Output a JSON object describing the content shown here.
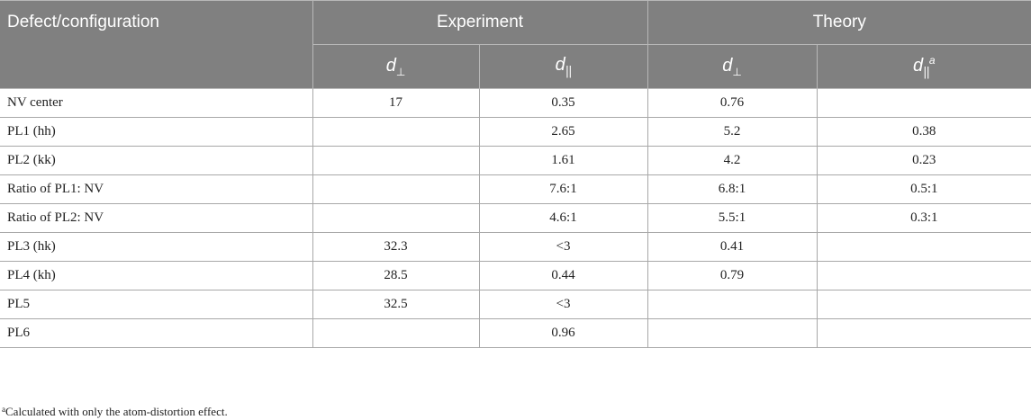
{
  "header": {
    "col0": "Defect/configuration",
    "group1": "Experiment",
    "group2": "Theory",
    "d_symbol": "d",
    "perp_sub": "⊥",
    "par_sub": "||",
    "footnote_mark": "a"
  },
  "rows": [
    {
      "name": "NV center",
      "exp_perp": "17",
      "exp_par": "0.35",
      "th_perp": "0.76",
      "th_par": ""
    },
    {
      "name": "PL1 (hh)",
      "exp_perp": "",
      "exp_par": "2.65",
      "th_perp": "5.2",
      "th_par": "0.38"
    },
    {
      "name": "PL2 (kk)",
      "exp_perp": "",
      "exp_par": "1.61",
      "th_perp": "4.2",
      "th_par": "0.23"
    },
    {
      "name": "Ratio of PL1: NV",
      "exp_perp": "",
      "exp_par": "7.6:1",
      "th_perp": "6.8:1",
      "th_par": "0.5:1"
    },
    {
      "name": "Ratio of PL2: NV",
      "exp_perp": "",
      "exp_par": "4.6:1",
      "th_perp": "5.5:1",
      "th_par": "0.3:1"
    },
    {
      "name": "PL3 (hk)",
      "exp_perp": "32.3",
      "exp_par": "<3",
      "th_perp": "0.41",
      "th_par": ""
    },
    {
      "name": "PL4 (kh)",
      "exp_perp": "28.5",
      "exp_par": "0.44",
      "th_perp": "0.79",
      "th_par": ""
    },
    {
      "name": "PL5",
      "exp_perp": "32.5",
      "exp_par": "<3",
      "th_perp": "",
      "th_par": ""
    },
    {
      "name": "PL6",
      "exp_perp": "",
      "exp_par": "0.96",
      "th_perp": "",
      "th_par": ""
    }
  ],
  "footnote": {
    "mark": "a",
    "text": "Calculated with only the atom-distortion effect."
  }
}
